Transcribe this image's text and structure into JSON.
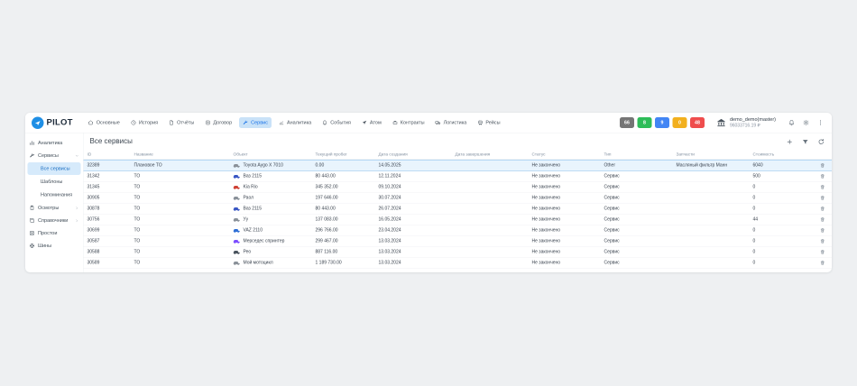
{
  "topnav": {
    "logo_text": "PILOT",
    "items": [
      {
        "icon": "home",
        "label": "Основные",
        "active": false
      },
      {
        "icon": "history",
        "label": "История",
        "active": false
      },
      {
        "icon": "report",
        "label": "Отчёты",
        "active": false
      },
      {
        "icon": "contract",
        "label": "Договор",
        "active": false
      },
      {
        "icon": "wrench",
        "label": "Сервис",
        "active": true
      },
      {
        "icon": "analytics",
        "label": "Аналитика",
        "active": false
      },
      {
        "icon": "bell",
        "label": "События",
        "active": false
      },
      {
        "icon": "plane",
        "label": "Атом",
        "active": false
      },
      {
        "icon": "briefcase",
        "label": "Контракты",
        "active": false
      },
      {
        "icon": "truck",
        "label": "Логистика",
        "active": false
      },
      {
        "icon": "bus",
        "label": "Рейсы",
        "active": false
      }
    ],
    "badges": [
      {
        "value": "66",
        "color": "#757575"
      },
      {
        "value": "8",
        "color": "#2ebd59"
      },
      {
        "value": "9",
        "color": "#4285f4"
      },
      {
        "value": "0",
        "color": "#f2b01e"
      },
      {
        "value": "48",
        "color": "#ef4d4d"
      }
    ],
    "user": {
      "name": "demo_demo(master)",
      "balance": "96033716.19 ₽"
    }
  },
  "sidebar": {
    "items": [
      {
        "icon": "bar-chart",
        "label": "Аналитика",
        "chevron": "none"
      },
      {
        "icon": "tools",
        "label": "Сервисы",
        "chevron": "down",
        "children": [
          {
            "label": "Все сервисы",
            "active": true
          },
          {
            "label": "Шаблоны",
            "active": false
          },
          {
            "label": "Напоминания",
            "active": false
          }
        ]
      },
      {
        "icon": "clipboard",
        "label": "Осмотры",
        "chevron": "right"
      },
      {
        "icon": "book",
        "label": "Справочники",
        "chevron": "right"
      },
      {
        "icon": "downtime",
        "label": "Простои",
        "chevron": "none"
      },
      {
        "icon": "tire",
        "label": "Шины",
        "chevron": "none"
      }
    ]
  },
  "main": {
    "title": "Все сервисы",
    "toolbar": {
      "add": "add",
      "filter": "filter",
      "refresh": "refresh"
    },
    "table": {
      "columns": [
        "ID",
        "Название",
        "Объект",
        "Текущий пробег",
        "Дата создания",
        "Дата завершения",
        "Статус",
        "Тип",
        "Запчасти",
        "Стоимость"
      ],
      "rows": [
        {
          "id": "32389",
          "name": "Плановое ТО",
          "object": "Toyota Aygo X 7010",
          "icon_color": "#8a9199",
          "mileage": "0.00",
          "created": "14.05.2025",
          "finished": "",
          "status": "Не закончено",
          "type": "Other",
          "parts": "Масляный фильтр Манн",
          "cost": "6040",
          "selected": true
        },
        {
          "id": "31342",
          "name": "ТО",
          "object": "Ваз 2115",
          "icon_color": "#3a57c4",
          "mileage": "80 443.00",
          "created": "12.11.2024",
          "finished": "",
          "status": "Не закончено",
          "type": "Сервис",
          "parts": "",
          "cost": "500",
          "selected": false
        },
        {
          "id": "31345",
          "name": "ТО",
          "object": "Kia Rio",
          "icon_color": "#cf4236",
          "mileage": "345 352.00",
          "created": "09.10.2024",
          "finished": "",
          "status": "Не закончено",
          "type": "Сервис",
          "parts": "",
          "cost": "0",
          "selected": false
        },
        {
          "id": "30905",
          "name": "ТО",
          "object": "Раол",
          "icon_color": "#8a9199",
          "mileage": "197 646.00",
          "created": "30.07.2024",
          "finished": "",
          "status": "Не закончено",
          "type": "Сервис",
          "parts": "",
          "cost": "0",
          "selected": false
        },
        {
          "id": "30878",
          "name": "ТО",
          "object": "Ваз 2115",
          "icon_color": "#3a57c4",
          "mileage": "80 443.00",
          "created": "26.07.2024",
          "finished": "",
          "status": "Не закончено",
          "type": "Сервис",
          "parts": "",
          "cost": "0",
          "selected": false
        },
        {
          "id": "30756",
          "name": "ТО",
          "object": "Уу",
          "icon_color": "#8a9199",
          "mileage": "137 083.00",
          "created": "16.05.2024",
          "finished": "",
          "status": "Не закончено",
          "type": "Сервис",
          "parts": "",
          "cost": "44",
          "selected": false
        },
        {
          "id": "30699",
          "name": "ТО",
          "object": "VAZ 2110",
          "icon_color": "#2f6fd6",
          "mileage": "296 766.00",
          "created": "23.04.2024",
          "finished": "",
          "status": "Не закончено",
          "type": "Сервис",
          "parts": "",
          "cost": "0",
          "selected": false
        },
        {
          "id": "30587",
          "name": "ТО",
          "object": "Мерседес спринтер",
          "icon_color": "#7c4dff",
          "mileage": "299 467.00",
          "created": "13.03.2024",
          "finished": "",
          "status": "Не закончено",
          "type": "Сервис",
          "parts": "",
          "cost": "0",
          "selected": false
        },
        {
          "id": "30588",
          "name": "ТО",
          "object": "Рео",
          "icon_color": "#4a545e",
          "mileage": "887 116.00",
          "created": "13.03.2024",
          "finished": "",
          "status": "Не закончено",
          "type": "Сервис",
          "parts": "",
          "cost": "0",
          "selected": false
        },
        {
          "id": "30589",
          "name": "ТО",
          "object": "Мой мотоцикл",
          "icon_color": "#8a9199",
          "mileage": "1 189 730.00",
          "created": "13.03.2024",
          "finished": "",
          "status": "Не закончено",
          "type": "Сервис",
          "parts": "",
          "cost": "0",
          "selected": false
        }
      ]
    }
  },
  "colors": {
    "accent": "#1a73e8",
    "nav_active_bg": "#c9e2f8",
    "sidebar_active_bg": "#d6eafb",
    "selected_row_bg": "#e9f4fd",
    "selected_row_border": "#7db9ea"
  }
}
